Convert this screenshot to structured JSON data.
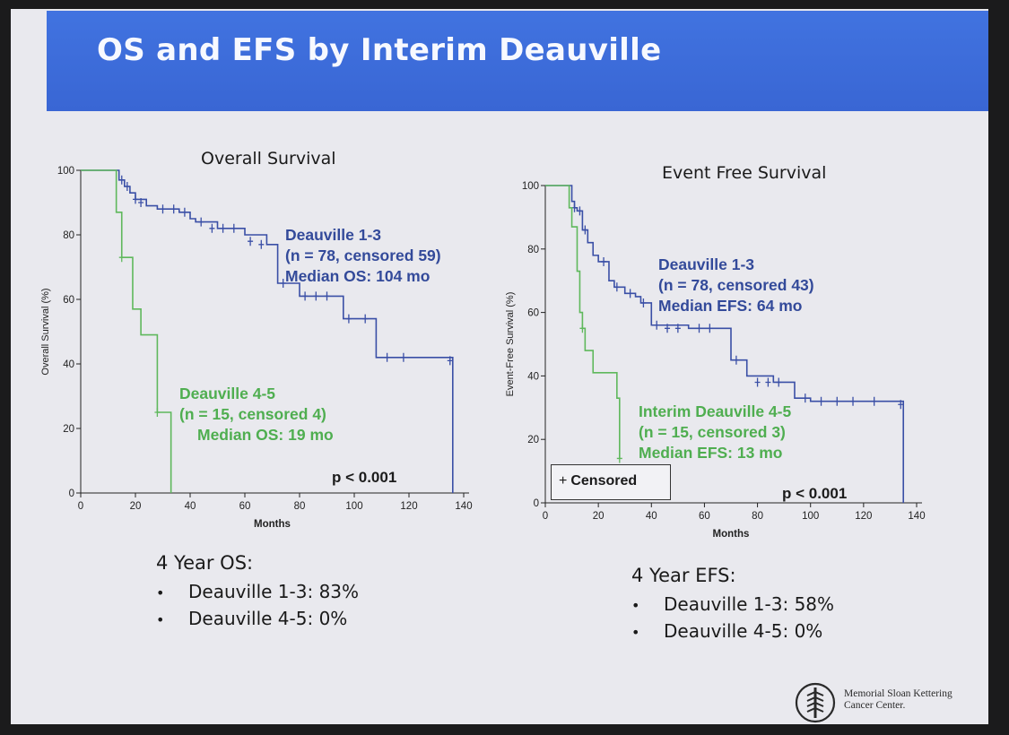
{
  "slide": {
    "title": "OS and EFS by Interim Deauville",
    "logo_text": [
      "Memorial Sloan Kettering",
      "Cancer Center."
    ]
  },
  "os_panel": {
    "chart_title": "Overall Survival",
    "ylabel": "Overall Survival (%)",
    "xlabel": "Months",
    "x_ticks": [
      "0",
      "20",
      "40",
      "60",
      "80",
      "100",
      "120",
      "140"
    ],
    "y_ticks": [
      "0",
      "20",
      "40",
      "60",
      "80",
      "100"
    ],
    "group1": [
      "Deauville 1-3",
      "(n = 78, censored 59)",
      "Median OS: 104 mo"
    ],
    "group2": [
      "Deauville 4-5",
      "(n = 15, censored 4)",
      "Median OS: 19 mo"
    ],
    "p_value": "p < 0.001",
    "summary_head": "4 Year OS:",
    "summary_items": [
      "Deauville 1-3: 83%",
      "Deauville 4-5: 0%"
    ]
  },
  "efs_panel": {
    "chart_title": "Event Free Survival",
    "ylabel": "Event-Free Survival (%)",
    "xlabel": "Months",
    "x_ticks": [
      "0",
      "20",
      "40",
      "60",
      "80",
      "100",
      "120",
      "140"
    ],
    "y_ticks": [
      "0",
      "20",
      "40",
      "60",
      "80",
      "100"
    ],
    "group1": [
      "Deauville 1-3",
      "(n = 78, censored 43)",
      "Median EFS: 64 mo"
    ],
    "group2": [
      "Interim Deauville 4-5",
      "(n = 15, censored 3)",
      "Median EFS: 13 mo"
    ],
    "p_value": "p < 0.001",
    "legend_symbol": "+",
    "legend_label": "Censored",
    "summary_head": "4 Year EFS:",
    "summary_items": [
      "Deauville 1-3: 58%",
      "Deauville 4-5: 0%"
    ]
  },
  "colors": {
    "blue_curve": "#3a4fa6",
    "green_curve": "#5fb85c",
    "title_bar": "#3d6fdc"
  },
  "chart_data": [
    {
      "type": "line",
      "title": "Overall Survival",
      "xlabel": "Months",
      "ylabel": "Overall Survival (%)",
      "xlim": [
        0,
        140
      ],
      "ylim": [
        0,
        100
      ],
      "step": true,
      "series": [
        {
          "name": "Deauville 1-3",
          "x": [
            0,
            12,
            14,
            16,
            18,
            20,
            24,
            28,
            36,
            40,
            42,
            50,
            58,
            60,
            68,
            72,
            76,
            80,
            88,
            96,
            100,
            108,
            120,
            136,
            136
          ],
          "y": [
            100,
            100,
            97,
            95,
            93,
            91,
            89,
            88,
            87,
            85,
            84,
            82,
            82,
            80,
            77,
            65,
            65,
            61,
            61,
            54,
            54,
            42,
            42,
            41,
            0
          ],
          "censored": [
            [
              15,
              97
            ],
            [
              17,
              95
            ],
            [
              20,
              91
            ],
            [
              22,
              90
            ],
            [
              30,
              88
            ],
            [
              34,
              88
            ],
            [
              38,
              87
            ],
            [
              44,
              84
            ],
            [
              48,
              82
            ],
            [
              52,
              82
            ],
            [
              56,
              82
            ],
            [
              62,
              78
            ],
            [
              66,
              77
            ],
            [
              74,
              65
            ],
            [
              82,
              61
            ],
            [
              86,
              61
            ],
            [
              90,
              61
            ],
            [
              98,
              54
            ],
            [
              104,
              54
            ],
            [
              112,
              42
            ],
            [
              118,
              42
            ],
            [
              135,
              41
            ]
          ]
        },
        {
          "name": "Deauville 4-5",
          "x": [
            0,
            11,
            13,
            15,
            17,
            19,
            22,
            27,
            28,
            33,
            33
          ],
          "y": [
            100,
            100,
            87,
            73,
            73,
            57,
            49,
            49,
            25,
            25,
            0
          ],
          "censored": [
            [
              15,
              73
            ],
            [
              28,
              25
            ]
          ]
        }
      ]
    },
    {
      "type": "line",
      "title": "Event Free Survival",
      "xlabel": "Months",
      "ylabel": "Event-Free Survival (%)",
      "xlim": [
        0,
        140
      ],
      "ylim": [
        0,
        100
      ],
      "step": true,
      "series": [
        {
          "name": "Deauville 1-3",
          "x": [
            0,
            9,
            10,
            11,
            12,
            14,
            16,
            18,
            20,
            24,
            26,
            30,
            34,
            36,
            40,
            54,
            66,
            70,
            76,
            86,
            94,
            100,
            135,
            135
          ],
          "y": [
            100,
            100,
            95,
            93,
            92,
            86,
            82,
            78,
            76,
            70,
            68,
            66,
            65,
            63,
            56,
            55,
            55,
            45,
            40,
            38,
            33,
            32,
            31,
            0
          ],
          "censored": [
            [
              11,
              93
            ],
            [
              13,
              92
            ],
            [
              15,
              86
            ],
            [
              22,
              76
            ],
            [
              27,
              68
            ],
            [
              32,
              66
            ],
            [
              37,
              63
            ],
            [
              42,
              56
            ],
            [
              46,
              55
            ],
            [
              50,
              55
            ],
            [
              58,
              55
            ],
            [
              62,
              55
            ],
            [
              72,
              45
            ],
            [
              80,
              38
            ],
            [
              84,
              38
            ],
            [
              88,
              38
            ],
            [
              98,
              33
            ],
            [
              104,
              32
            ],
            [
              110,
              32
            ],
            [
              116,
              32
            ],
            [
              124,
              32
            ],
            [
              134,
              31
            ]
          ]
        },
        {
          "name": "Interim Deauville 4-5",
          "x": [
            0,
            8,
            9,
            10,
            12,
            13,
            14,
            15,
            18,
            26,
            27,
            28,
            28
          ],
          "y": [
            100,
            100,
            93,
            87,
            73,
            60,
            55,
            48,
            41,
            41,
            33,
            14,
            14
          ],
          "censored": [
            [
              14,
              55
            ],
            [
              28,
              14
            ]
          ]
        }
      ]
    }
  ]
}
